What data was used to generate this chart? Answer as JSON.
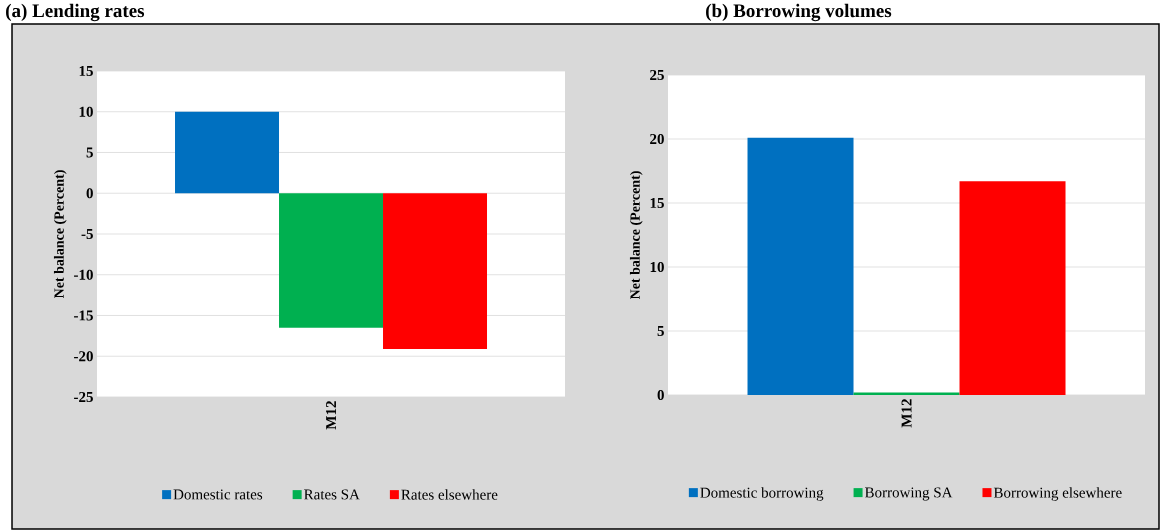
{
  "chart_data": [
    {
      "type": "bar",
      "title": "(a) Lending rates",
      "ylabel": "Net balance (Percent)",
      "categories": [
        "M12"
      ],
      "series": [
        {
          "name": "Domestic rates",
          "color": "#0070c0",
          "values": [
            10
          ]
        },
        {
          "name": "Rates SA",
          "color": "#00b050",
          "values": [
            -16.5
          ]
        },
        {
          "name": "Rates elsewhere",
          "color": "#ff0000",
          "values": [
            -19.1
          ]
        }
      ],
      "ylim": [
        -25,
        15
      ],
      "yticks": [
        -25,
        -20,
        -15,
        -10,
        -5,
        0,
        5,
        10,
        15
      ],
      "grid": "y",
      "legend": "bottom"
    },
    {
      "type": "bar",
      "title": "(b) Borrowing volumes",
      "ylabel": "Net balance (Percent)",
      "categories": [
        "M12"
      ],
      "series": [
        {
          "name": "Domestic borrowing",
          "color": "#0070c0",
          "values": [
            20.1
          ]
        },
        {
          "name": "Borrowing SA",
          "color": "#00b050",
          "values": [
            0.2
          ]
        },
        {
          "name": "Borrowing elsewhere",
          "color": "#ff0000",
          "values": [
            16.7
          ]
        }
      ],
      "ylim": [
        0,
        25
      ],
      "yticks": [
        0,
        5,
        10,
        15,
        20,
        25
      ],
      "grid": "y",
      "legend": "bottom"
    }
  ]
}
